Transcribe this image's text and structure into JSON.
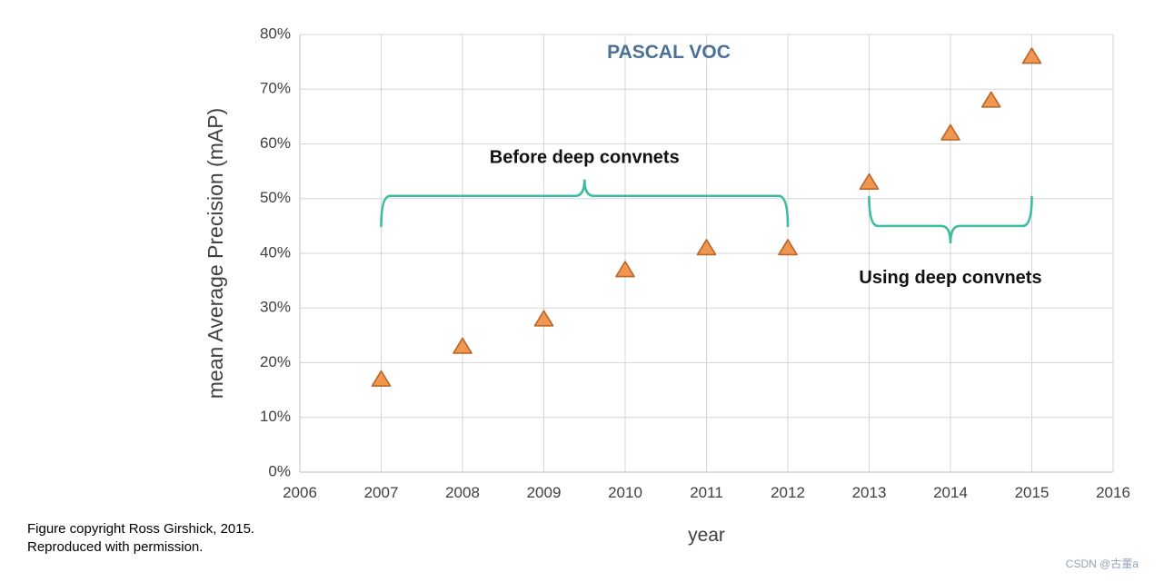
{
  "chart_data": {
    "type": "scatter",
    "title": "PASCAL VOC",
    "xlabel": "year",
    "ylabel": "mean Average Precision (mAP)",
    "xlim": [
      2006,
      2016
    ],
    "ylim": [
      0,
      80
    ],
    "x_ticks": [
      2006,
      2007,
      2008,
      2009,
      2010,
      2011,
      2012,
      2013,
      2014,
      2015,
      2016
    ],
    "y_ticks": [
      0,
      10,
      20,
      30,
      40,
      50,
      60,
      70,
      80
    ],
    "y_tick_suffix": "%",
    "grid": true,
    "marker": "triangle",
    "points": [
      {
        "x": 2007,
        "y": 17
      },
      {
        "x": 2008,
        "y": 23
      },
      {
        "x": 2009,
        "y": 28
      },
      {
        "x": 2010,
        "y": 37
      },
      {
        "x": 2011,
        "y": 41
      },
      {
        "x": 2012,
        "y": 41
      },
      {
        "x": 2013,
        "y": 53
      },
      {
        "x": 2014,
        "y": 62
      },
      {
        "x": 2014.5,
        "y": 68
      },
      {
        "x": 2015,
        "y": 76
      }
    ],
    "annotations": [
      {
        "label": "Before deep convnets",
        "label_x": 2009.5,
        "label_y": 56.5,
        "brace": {
          "x1": 2007,
          "x2": 2012,
          "y_bar": 50.5,
          "y_end": 45,
          "y_tip": 53.5,
          "tip_x": 2009.5
        }
      },
      {
        "label": "Using deep convnets",
        "label_x": 2014,
        "label_y": 34.5,
        "brace": {
          "x1": 2013,
          "x2": 2015,
          "y_bar": 45,
          "y_end": 50.3,
          "y_tip": 41.8,
          "tip_x": 2014
        }
      }
    ],
    "colors": {
      "marker_fill": "#f0964f",
      "marker_stroke": "#b9662a",
      "brace": "#3bbc9e",
      "title": "#4a7096",
      "grid": "#d6d6d6",
      "axis": "#bfbfbf",
      "text": "#404040",
      "annotation": "#111111"
    }
  },
  "footer": {
    "line1": "Figure copyright Ross Girshick, 2015.",
    "line2": "Reproduced with permission."
  },
  "watermark": "CSDN @古董a"
}
